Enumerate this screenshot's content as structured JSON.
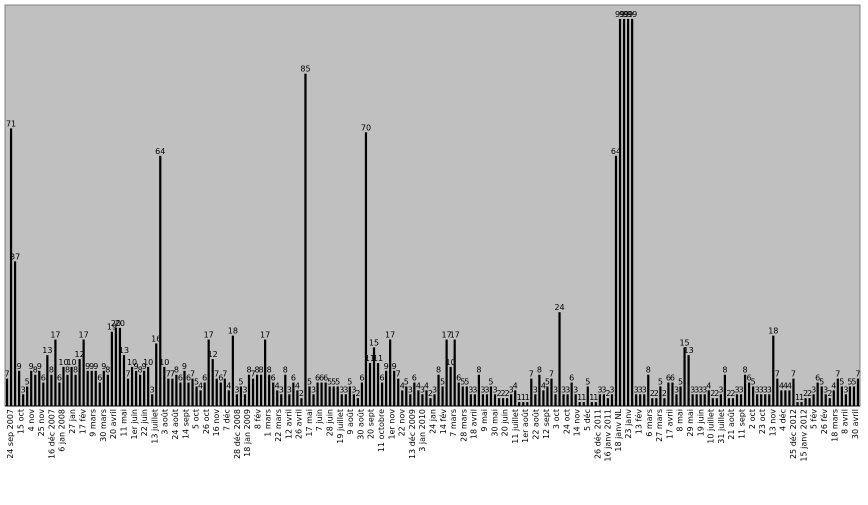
{
  "chart_data": {
    "type": "bar",
    "title": "",
    "xlabel": "",
    "ylabel": "",
    "ylim": [
      0,
      100
    ],
    "grid": false,
    "legend": "none",
    "colors": {
      "plot_bg": "#c0c0c0",
      "bar": "#000000",
      "page_bg": "#ffffff",
      "axis": "#808080"
    },
    "x_tick_labels": [
      "24 sep 2007",
      "15 oct",
      "4 nov",
      "25 nov",
      "16 déc 2007",
      "6 jan 2008",
      "27 jan",
      "17 fév",
      "9 mars",
      "30 mars",
      "20 avril",
      "11 mai",
      "1er juin",
      "22 juin",
      "13 juillet",
      "3 août",
      "24 août",
      "14 sept",
      "5 oct",
      "26 oct",
      "16 nov",
      "7 déc",
      "28 déc 2008",
      "18 jan 2009",
      "8 fév",
      "1 mars",
      "22 mars",
      "12 avril",
      "26 avril",
      "17 mai",
      "7 juin",
      "28 juin",
      "19 juillet",
      "9 août",
      "30 août",
      "20 sept",
      "11 octobre",
      "1er nov",
      "22 nov",
      "13 déc 2009",
      "3 jan 2010",
      "24 jan",
      "14 fév",
      "7 mars",
      "28 mars",
      "18 avril",
      "9 mai",
      "30 mai",
      "20 juin",
      "11 juillet",
      "1er août",
      "22 août",
      "12 sept",
      "3 oct",
      "24 oct",
      "14 nov",
      "5 déc",
      "26 déc 2011",
      "16 janv 2011",
      "18 janv NL",
      "23 janv",
      "13 fév",
      "6 mars",
      "27 mars",
      "17 avril",
      "8 mai",
      "29 mai",
      "19 juin",
      "10 juillet",
      "31 juillet",
      "21 août",
      "11 sept",
      "2 oct",
      "23 oct",
      "13 nov",
      "4 déc",
      "25 déc 2012",
      "15 janv 2012",
      "5 fév",
      "26 fév",
      "18 mars",
      "8 avril",
      "30 avril"
    ],
    "values": [
      7,
      71,
      37,
      9,
      3,
      5,
      9,
      8,
      9,
      6,
      13,
      8,
      17,
      6,
      10,
      8,
      10,
      8,
      12,
      17,
      9,
      9,
      9,
      6,
      9,
      8,
      19,
      20,
      20,
      13,
      7,
      10,
      9,
      8,
      9,
      10,
      3,
      16,
      64,
      10,
      7,
      7,
      8,
      6,
      9,
      6,
      7,
      5,
      4,
      6,
      17,
      12,
      7,
      6,
      7,
      4,
      18,
      3,
      5,
      3,
      8,
      7,
      8,
      8,
      17,
      8,
      6,
      4,
      3,
      8,
      3,
      6,
      4,
      2,
      85,
      5,
      3,
      6,
      6,
      6,
      5,
      5,
      5,
      3,
      3,
      5,
      3,
      2,
      6,
      70,
      11,
      15,
      11,
      6,
      9,
      17,
      9,
      7,
      4,
      5,
      3,
      6,
      4,
      3,
      4,
      2,
      3,
      8,
      5,
      17,
      10,
      17,
      6,
      5,
      5,
      3,
      3,
      8,
      3,
      3,
      5,
      3,
      2,
      2,
      2,
      3,
      4,
      1,
      1,
      1,
      7,
      3,
      8,
      4,
      5,
      7,
      3,
      24,
      3,
      3,
      6,
      3,
      1,
      1,
      5,
      1,
      1,
      3,
      3,
      2,
      3,
      64,
      99,
      99,
      99,
      99,
      3,
      3,
      3,
      8,
      2,
      2,
      5,
      2,
      6,
      6,
      3,
      5,
      15,
      13,
      3,
      3,
      3,
      3,
      4,
      2,
      2,
      3,
      8,
      2,
      2,
      3,
      3,
      8,
      6,
      5,
      3,
      3,
      3,
      3,
      18,
      7,
      4,
      4,
      4,
      7,
      1,
      1,
      2,
      2,
      3,
      6,
      5,
      3,
      2,
      4,
      7,
      5,
      3,
      5,
      5,
      7
    ]
  }
}
